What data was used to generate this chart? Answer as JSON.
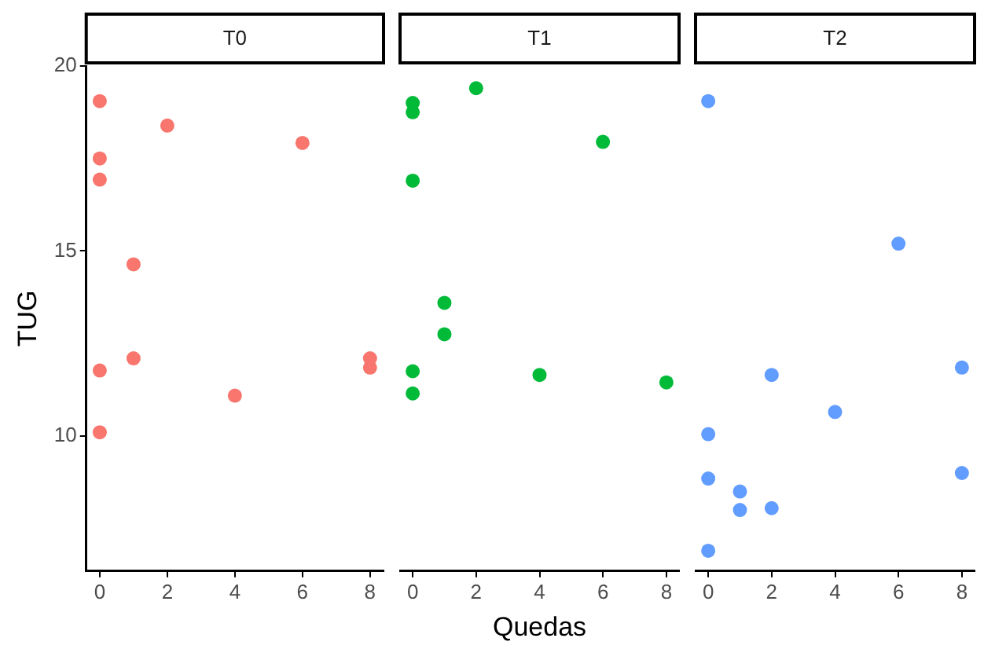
{
  "chart_data": [
    {
      "type": "scatter",
      "title": "T0",
      "ylabel": "TUG",
      "color": "#f8766d",
      "marker": "circle",
      "x": [
        0,
        0,
        0,
        0,
        0,
        1,
        1,
        2,
        4,
        6,
        8,
        8
      ],
      "values": [
        19.05,
        17.5,
        16.93,
        11.77,
        10.1,
        14.64,
        12.1,
        18.39,
        11.09,
        17.92,
        12.1,
        11.85
      ],
      "xlim": [
        -0.4,
        8.4
      ],
      "xticks": [
        0,
        2,
        4,
        6,
        8
      ],
      "ylim": [
        6.35,
        20
      ],
      "yticks": [
        10,
        15,
        20
      ]
    },
    {
      "type": "scatter",
      "title": "T1",
      "xlabel": "Quedas",
      "color": "#00ba38",
      "marker": "circle",
      "tick_labels": "x",
      "x": [
        0,
        0,
        0,
        0,
        0,
        1,
        1,
        2,
        4,
        6,
        8
      ],
      "values": [
        19.0,
        18.75,
        16.9,
        11.75,
        11.15,
        13.6,
        12.75,
        19.4,
        11.65,
        17.95,
        11.45
      ],
      "xlim": [
        -0.4,
        8.4
      ],
      "xticks": [
        0,
        2,
        4,
        6,
        8
      ],
      "ylim": [
        6.35,
        20
      ],
      "yticks": [
        10,
        15,
        20
      ]
    },
    {
      "type": "scatter",
      "title": "T2",
      "color": "#619cff",
      "marker": "circle",
      "tick_labels": "x",
      "x": [
        0,
        0,
        0,
        0,
        1,
        1,
        2,
        2,
        4,
        6,
        8,
        8
      ],
      "values": [
        19.05,
        10.05,
        8.85,
        6.9,
        8.5,
        8.0,
        11.65,
        8.05,
        10.65,
        15.2,
        11.85,
        9.0
      ],
      "xlim": [
        -0.4,
        8.4
      ],
      "xticks": [
        0,
        2,
        4,
        6,
        8
      ],
      "ylim": [
        6.35,
        20
      ],
      "yticks": [
        10,
        15,
        20
      ]
    }
  ]
}
